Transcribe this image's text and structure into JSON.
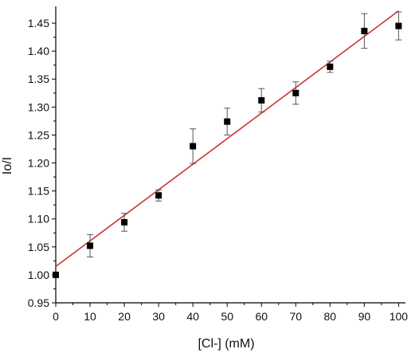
{
  "chart_data": {
    "type": "scatter",
    "xlabel": "[Cl-] (mM)",
    "ylabel": "Io/I",
    "xlim": [
      0,
      102
    ],
    "ylim": [
      0.95,
      1.48
    ],
    "x_ticks": [
      0,
      10,
      20,
      30,
      40,
      50,
      60,
      70,
      80,
      90,
      100
    ],
    "x_tick_labels": [
      "0",
      "10",
      "20",
      "30",
      "40",
      "50",
      "60",
      "70",
      "80",
      "90",
      "100"
    ],
    "y_ticks": [
      0.95,
      1.0,
      1.05,
      1.1,
      1.15,
      1.2,
      1.25,
      1.3,
      1.35,
      1.4,
      1.45
    ],
    "y_tick_labels": [
      "0.95",
      "1.00",
      "1.05",
      "1.10",
      "1.15",
      "1.20",
      "1.25",
      "1.30",
      "1.35",
      "1.40",
      "1.45"
    ],
    "grid": false,
    "series": [
      {
        "x": [
          0,
          10,
          20,
          30,
          40,
          50,
          60,
          70,
          80,
          90,
          100
        ],
        "y": [
          1.0,
          1.052,
          1.094,
          1.142,
          1.23,
          1.274,
          1.312,
          1.325,
          1.372,
          1.436,
          1.445
        ],
        "error": [
          0.0,
          0.02,
          0.016,
          0.01,
          0.031,
          0.024,
          0.021,
          0.02,
          0.01,
          0.031,
          0.025
        ],
        "marker": "square",
        "color": "#000000"
      }
    ],
    "fit_line": {
      "x": [
        0,
        100
      ],
      "y": [
        1.015,
        1.472
      ],
      "color": "#cc3333"
    }
  }
}
